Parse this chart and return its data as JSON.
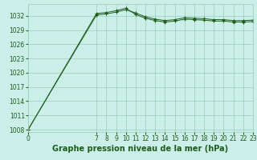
{
  "title": "Graphe pression niveau de la mer (hPa)",
  "background_color": "#cceee8",
  "grid_color": "#99ccbb",
  "line_color": "#1a5c1a",
  "x_hours": [
    0,
    7,
    8,
    9,
    10,
    11,
    12,
    13,
    14,
    15,
    16,
    17,
    18,
    19,
    20,
    21,
    22,
    23
  ],
  "y_line1": [
    1008.0,
    1032.2,
    1032.4,
    1032.8,
    1033.3,
    1032.6,
    1031.8,
    1031.3,
    1031.0,
    1031.2,
    1031.6,
    1031.5,
    1031.4,
    1031.2,
    1031.2,
    1031.0,
    1031.0,
    1031.1
  ],
  "y_line2": [
    1008.0,
    1032.5,
    1032.7,
    1033.1,
    1033.6,
    1032.3,
    1031.5,
    1031.0,
    1030.7,
    1030.9,
    1031.3,
    1031.2,
    1031.1,
    1030.9,
    1030.9,
    1030.7,
    1030.7,
    1030.8
  ],
  "ylim": [
    1007.5,
    1034.5
  ],
  "yticks": [
    1008,
    1011,
    1014,
    1017,
    1020,
    1023,
    1026,
    1029,
    1032
  ],
  "xlim": [
    0,
    23
  ],
  "xticks": [
    0,
    7,
    8,
    9,
    10,
    11,
    12,
    13,
    14,
    15,
    16,
    17,
    18,
    19,
    20,
    21,
    22,
    23
  ],
  "title_fontsize": 7,
  "tick_fontsize": 5.5,
  "fig_width": 3.2,
  "fig_height": 2.0,
  "dpi": 100
}
